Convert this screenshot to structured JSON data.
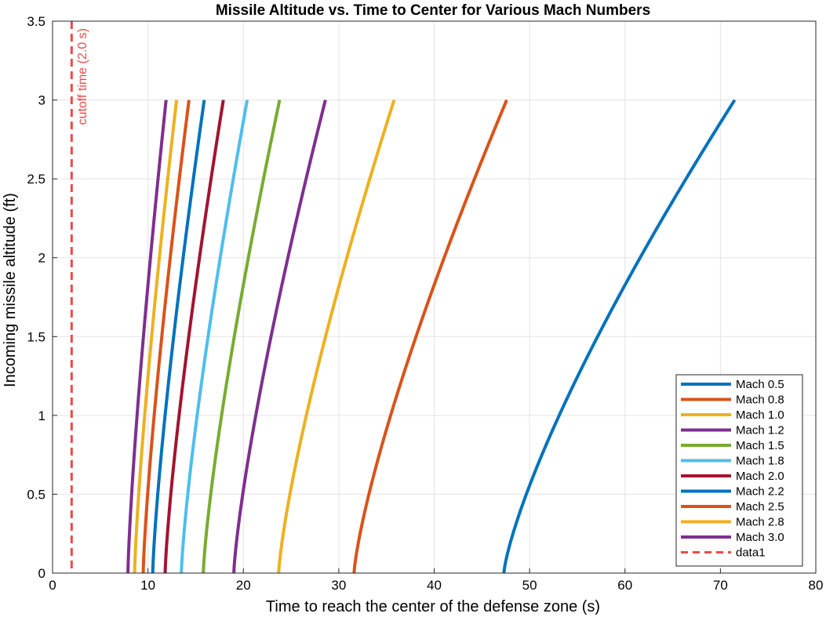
{
  "chart_data": {
    "type": "line",
    "title": "Missile Altitude vs. Time to Center for Various Mach Numbers",
    "xlabel": "Time to reach the center of the defense zone (s)",
    "ylabel": "Incoming missile altitude (ft)",
    "xlim": [
      0,
      80
    ],
    "ylim": [
      0,
      3.5
    ],
    "xticks": [
      0,
      10,
      20,
      30,
      40,
      50,
      60,
      70,
      80
    ],
    "xtick_labels": [
      "0",
      "10",
      "20",
      "30",
      "40",
      "50",
      "60",
      "70",
      "80"
    ],
    "yticks": [
      0,
      0.5,
      1,
      1.5,
      2,
      2.5,
      3,
      3.5
    ],
    "ytick_labels": [
      "0",
      "0.5",
      "1",
      "1.5",
      "2",
      "2.5",
      "3",
      "3.5"
    ],
    "grid": true,
    "legend_position": "bottom-right",
    "series": [
      {
        "name": "Mach 0.5",
        "color": "#0072BD",
        "x_start": 47.3,
        "x_end": 71.5
      },
      {
        "name": "Mach 0.8",
        "color": "#D95319",
        "x_start": 31.6,
        "x_end": 47.6
      },
      {
        "name": "Mach 1.0",
        "color": "#EDB120",
        "x_start": 23.7,
        "x_end": 35.8
      },
      {
        "name": "Mach 1.2",
        "color": "#7E2F8E",
        "x_start": 19.0,
        "x_end": 28.6
      },
      {
        "name": "Mach 1.5",
        "color": "#77AC30",
        "x_start": 15.8,
        "x_end": 23.8
      },
      {
        "name": "Mach 1.8",
        "color": "#4DBEEE",
        "x_start": 13.5,
        "x_end": 20.4
      },
      {
        "name": "Mach 2.0",
        "color": "#A2142F",
        "x_start": 11.8,
        "x_end": 17.9
      },
      {
        "name": "Mach 2.2",
        "color": "#0072BD",
        "x_start": 10.5,
        "x_end": 15.9
      },
      {
        "name": "Mach 2.5",
        "color": "#D95319",
        "x_start": 9.5,
        "x_end": 14.3
      },
      {
        "name": "Mach 2.8",
        "color": "#EDB120",
        "x_start": 8.6,
        "x_end": 13.0
      },
      {
        "name": "Mach 3.0",
        "color": "#7E2F8E",
        "x_start": 7.9,
        "x_end": 11.9
      }
    ],
    "y_range": [
      0,
      3
    ],
    "reference_line": {
      "name": "data1",
      "x": 2.0,
      "color": "#F04848",
      "style": "dashed"
    },
    "annotation": {
      "text": "cutoff time (2.0 s)",
      "color": "#F04848"
    }
  }
}
